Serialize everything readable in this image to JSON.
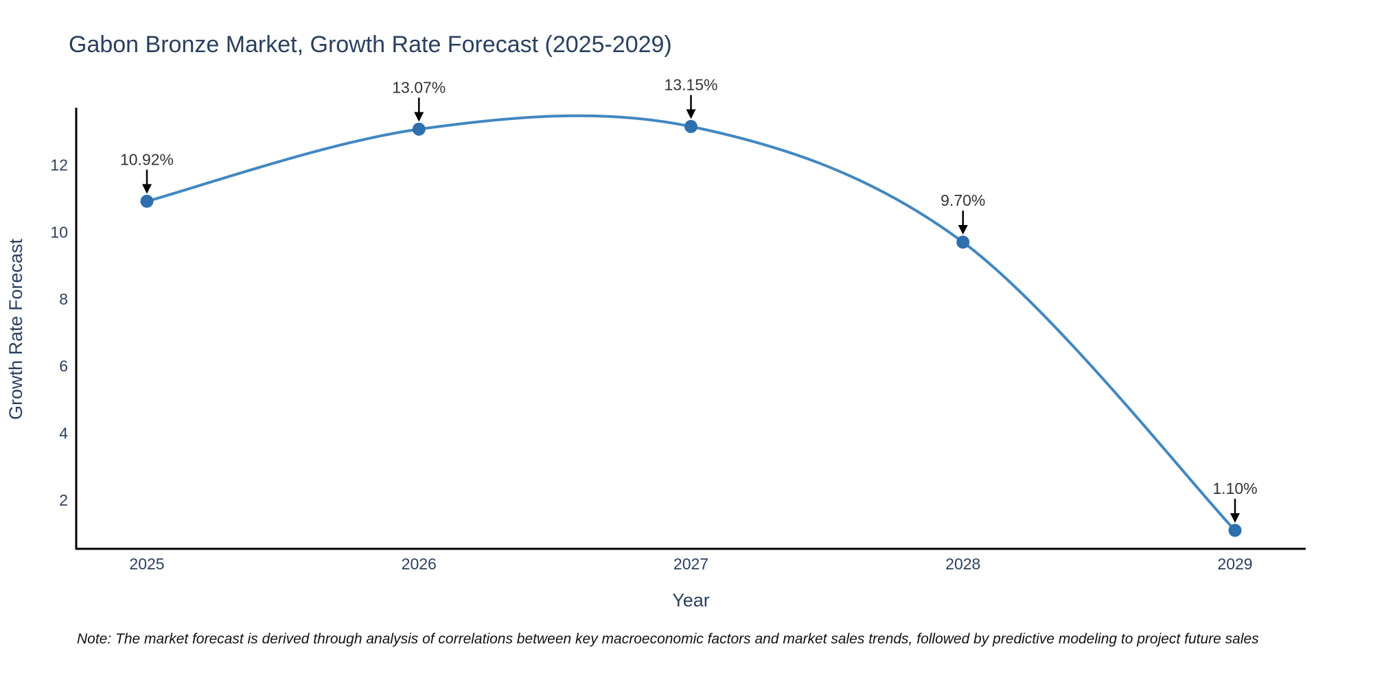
{
  "title": "Gabon Bronze Market, Growth Rate Forecast (2025-2029)",
  "note": "Note: The market forecast is derived through analysis of correlations between key macroeconomic factors and market sales trends, followed by predictive modeling to project future sales",
  "chart_data": {
    "type": "line",
    "title": "Gabon Bronze Market, Growth Rate Forecast (2025-2029)",
    "xlabel": "Year",
    "ylabel": "Growth Rate Forecast",
    "x": [
      2025,
      2026,
      2027,
      2028,
      2029
    ],
    "series": [
      {
        "name": "Growth Rate Forecast",
        "values": [
          10.92,
          13.07,
          13.15,
          9.7,
          1.1
        ],
        "point_labels": [
          "10.92%",
          "13.07%",
          "13.15%",
          "9.70%",
          "1.10%"
        ]
      }
    ],
    "xticks": [
      "2025",
      "2026",
      "2027",
      "2028",
      "2029"
    ],
    "yticks": [
      2,
      4,
      6,
      8,
      10,
      12
    ],
    "ylim": [
      0.55,
      13.65
    ],
    "line_shape": "spline",
    "grid": false,
    "legend": false,
    "annotation_arrows": true,
    "colors": {
      "line": "#4287c0",
      "marker": "#2e6fad",
      "axis_line": "#000000",
      "tick_text": "#2a3f5f",
      "axis_title_text": "#2a3f5f",
      "annotation_text": "#333333",
      "arrow": "#000000",
      "background": "#ffffff"
    }
  }
}
